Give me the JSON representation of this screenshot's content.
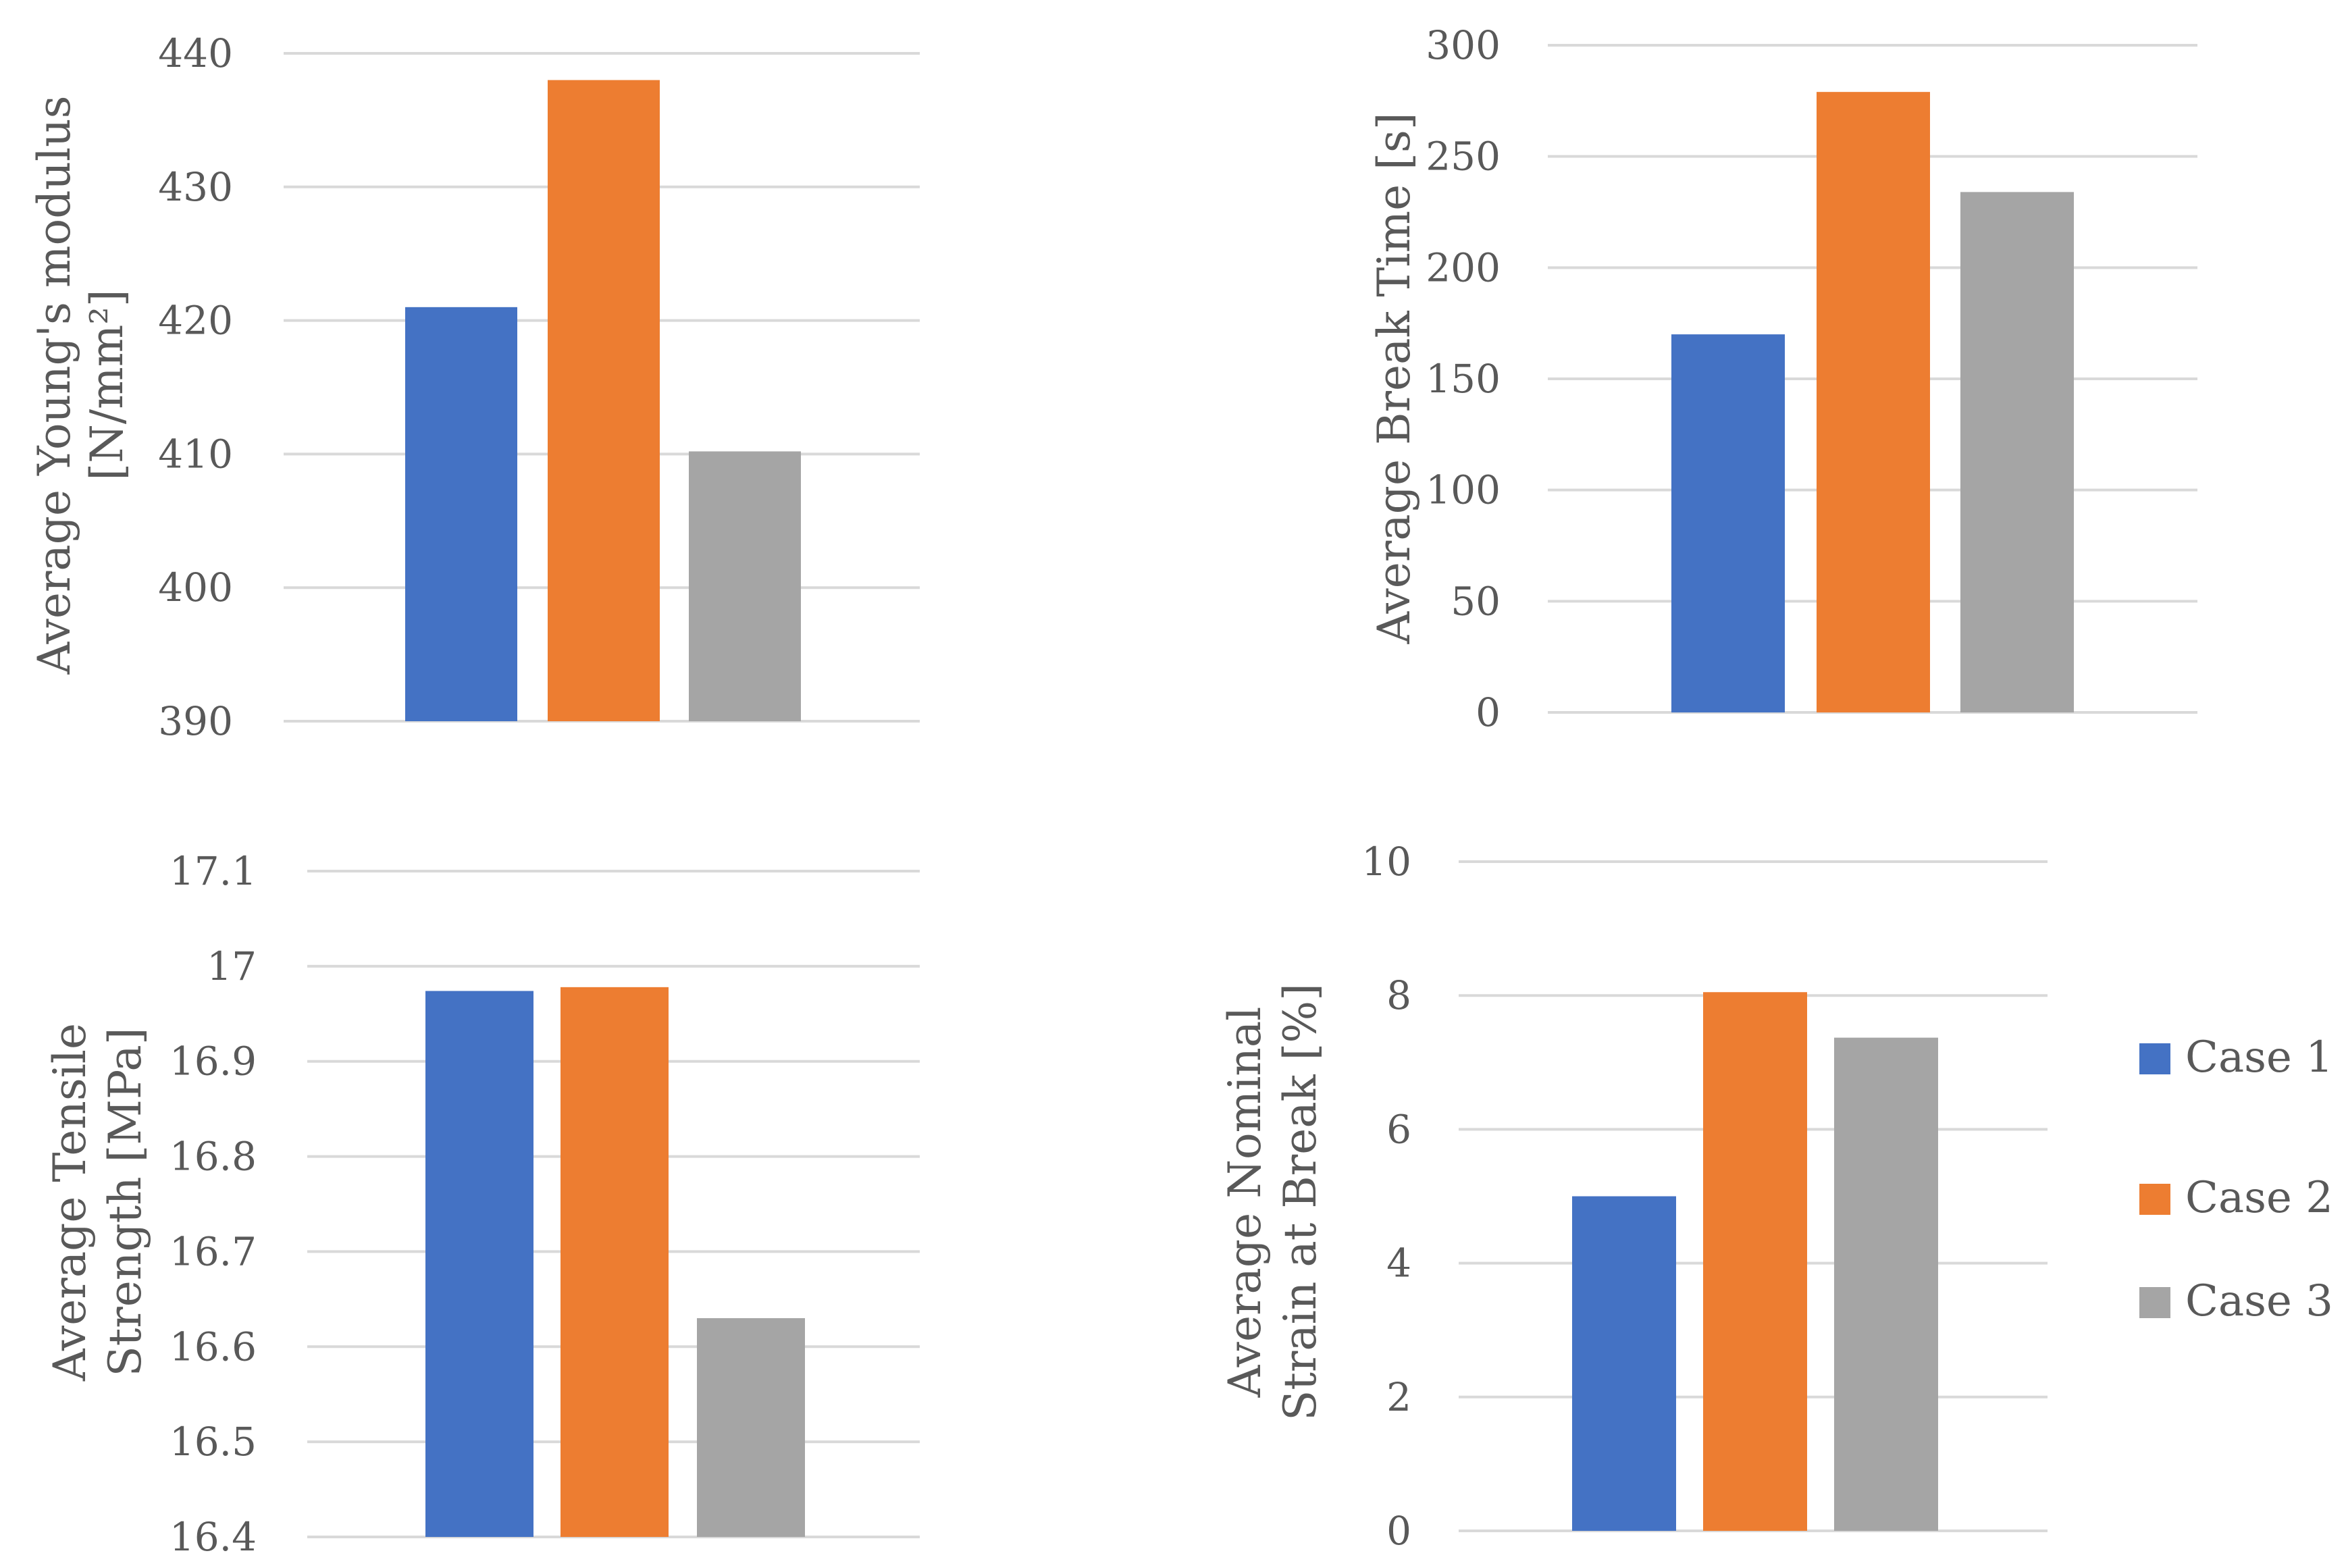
{
  "colors": {
    "case1": "#4472C4",
    "case2": "#ED7D31",
    "case3": "#A5A5A5",
    "grid": "#D9D9D9",
    "text": "#595959"
  },
  "legend": {
    "items": [
      {
        "label": "Case 1",
        "color": "#4472C4"
      },
      {
        "label": "Case 2",
        "color": "#ED7D31"
      },
      {
        "label": "Case 3",
        "color": "#A5A5A5"
      }
    ]
  },
  "chart_data": [
    {
      "type": "bar",
      "title": "",
      "ylabel_lines": [
        "Average Young's modulus",
        "[N/mm²]"
      ],
      "series": [
        {
          "name": "Case 1",
          "values": [
            421
          ]
        },
        {
          "name": "Case 2",
          "values": [
            438
          ]
        },
        {
          "name": "Case 3",
          "values": [
            410.2
          ]
        }
      ],
      "ylim": [
        390,
        440
      ],
      "ticks": [
        390,
        400,
        410,
        420,
        430,
        440
      ],
      "tick_labels": [
        "390",
        "400",
        "410",
        "420",
        "430",
        "440"
      ],
      "grid": true
    },
    {
      "type": "bar",
      "title": "",
      "ylabel_lines": [
        "Average Break Time [s]"
      ],
      "series": [
        {
          "name": "Case 1",
          "values": [
            170
          ]
        },
        {
          "name": "Case 2",
          "values": [
            279
          ]
        },
        {
          "name": "Case 3",
          "values": [
            234
          ]
        }
      ],
      "ylim": [
        0,
        300
      ],
      "ticks": [
        0,
        50,
        100,
        150,
        200,
        250,
        300
      ],
      "tick_labels": [
        "0",
        "50",
        "100",
        "150",
        "200",
        "250",
        "300"
      ],
      "grid": true
    },
    {
      "type": "bar",
      "title": "",
      "ylabel_lines": [
        "Average Tensile",
        "Strength [MPa]"
      ],
      "series": [
        {
          "name": "Case 1",
          "values": [
            16.974
          ]
        },
        {
          "name": "Case 2",
          "values": [
            16.978
          ]
        },
        {
          "name": "Case 3",
          "values": [
            16.63
          ]
        }
      ],
      "ylim": [
        16.4,
        17.1
      ],
      "ticks": [
        16.4,
        16.5,
        16.6,
        16.7,
        16.8,
        16.9,
        17.0,
        17.1
      ],
      "tick_labels": [
        "16.4",
        "16.5",
        "16.6",
        "16.7",
        "16.8",
        "16.9",
        "17",
        "17.1"
      ],
      "grid": true
    },
    {
      "type": "bar",
      "title": "",
      "ylabel_lines": [
        "Average Nominal",
        "Strain at Break [%]"
      ],
      "series": [
        {
          "name": "Case 1",
          "values": [
            5
          ]
        },
        {
          "name": "Case 2",
          "values": [
            8.05
          ]
        },
        {
          "name": "Case 3",
          "values": [
            7.37
          ]
        }
      ],
      "ylim": [
        0,
        10
      ],
      "ticks": [
        0,
        2,
        4,
        6,
        8,
        10
      ],
      "tick_labels": [
        "0",
        "2",
        "4",
        "6",
        "8",
        "10"
      ],
      "grid": true
    }
  ]
}
